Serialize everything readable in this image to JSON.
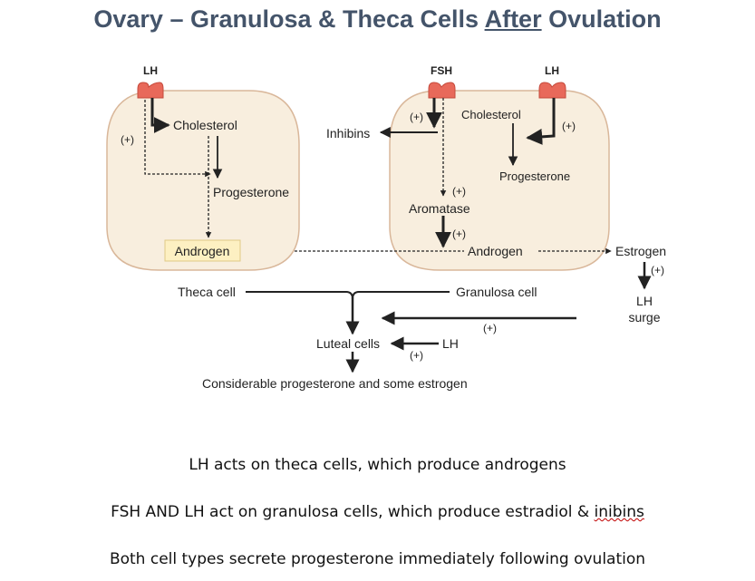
{
  "title": {
    "pre": "Ovary – Granulosa & Theca Cells ",
    "underlined": "After",
    "post": " Ovulation"
  },
  "diagram": {
    "theca": {
      "receptor": "LH",
      "cholesterol": "Cholesterol",
      "plus": "(+)",
      "progesterone": "Progesterone",
      "androgen": "Androgen"
    },
    "granulosa": {
      "receptor_fsh": "FSH",
      "receptor_lh": "LH",
      "inhibins": "Inhibins",
      "plus_fsh": "(+)",
      "cholesterol": "Cholesterol",
      "plus_lh": "(+)",
      "progesterone": "Progesterone",
      "plus_aromatase": "(+)",
      "aromatase": "Aromatase",
      "plus_androgen": "(+)",
      "androgen": "Androgen"
    },
    "estrogen": "Estrogen",
    "plus_estrogen": "(+)",
    "lh_surge_1": "LH",
    "lh_surge_2": "surge",
    "theca_cell": "Theca cell",
    "granulosa_cell": "Granulosa cell",
    "plus_surge": "(+)",
    "luteal_cells": "Luteal cells",
    "lh_luteal": "LH",
    "plus_luteal": "(+)",
    "output": "Considerable progesterone and some estrogen"
  },
  "captions": {
    "line1": "LH acts on theca cells, which produce androgens",
    "line2_pre": "FSH AND LH act on granulosa cells, which produce estradiol & ",
    "line2_word": "inibins",
    "line3": "Both cell types secrete progesterone immediately following ovulation"
  },
  "colors": {
    "title": "#44546a",
    "cell_fill": "#f8eede",
    "cell_border": "#d9b79a",
    "receptor": "#e8695a",
    "androgen_box": "#fdf0c2"
  }
}
